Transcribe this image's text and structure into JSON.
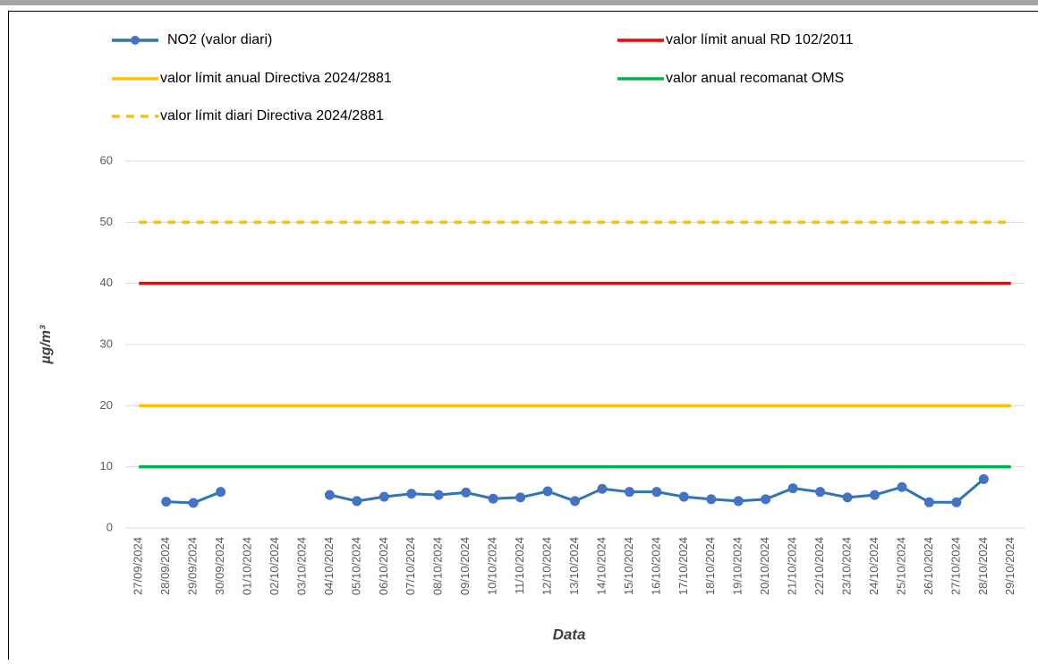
{
  "chart_data": {
    "type": "line",
    "y_label": "µg/m³",
    "x_label": "Data",
    "categories": [
      "27/09/2024",
      "28/09/2024",
      "29/09/2024",
      "30/09/2024",
      "01/10/2024",
      "02/10/2024",
      "03/10/2024",
      "04/10/2024",
      "05/10/2024",
      "06/10/2024",
      "07/10/2024",
      "08/10/2024",
      "09/10/2024",
      "10/10/2024",
      "11/10/2024",
      "12/10/2024",
      "13/10/2024",
      "14/10/2024",
      "15/10/2024",
      "16/10/2024",
      "17/10/2024",
      "18/10/2024",
      "19/10/2024",
      "20/10/2024",
      "21/10/2024",
      "22/10/2024",
      "23/10/2024",
      "24/10/2024",
      "25/10/2024",
      "26/10/2024",
      "27/10/2024",
      "28/10/2024",
      "29/10/2024"
    ],
    "series": [
      {
        "name": "NO2 (valor diari)",
        "color": "#2e75b6",
        "marker": true,
        "dash": false,
        "values": [
          null,
          4.3,
          4.1,
          5.9,
          null,
          null,
          null,
          5.4,
          4.4,
          5.1,
          5.6,
          5.4,
          5.8,
          4.8,
          5.0,
          6.0,
          4.4,
          6.4,
          5.9,
          5.9,
          5.1,
          4.7,
          4.4,
          4.7,
          6.5,
          5.9,
          5.0,
          5.4,
          6.7,
          4.2,
          4.2,
          8.0,
          null
        ]
      },
      {
        "name": "valor límit anual RD 102/2011",
        "color": "#ff0000",
        "marker": false,
        "dash": false,
        "values": [
          40,
          40,
          40,
          40,
          40,
          40,
          40,
          40,
          40,
          40,
          40,
          40,
          40,
          40,
          40,
          40,
          40,
          40,
          40,
          40,
          40,
          40,
          40,
          40,
          40,
          40,
          40,
          40,
          40,
          40,
          40,
          40,
          40
        ]
      },
      {
        "name": "valor límit anual Directiva 2024/2881",
        "color": "#ffc000",
        "marker": false,
        "dash": false,
        "values": [
          20,
          20,
          20,
          20,
          20,
          20,
          20,
          20,
          20,
          20,
          20,
          20,
          20,
          20,
          20,
          20,
          20,
          20,
          20,
          20,
          20,
          20,
          20,
          20,
          20,
          20,
          20,
          20,
          20,
          20,
          20,
          20,
          20
        ]
      },
      {
        "name": "valor anual recomanat OMS",
        "color": "#00b050",
        "marker": false,
        "dash": false,
        "values": [
          10,
          10,
          10,
          10,
          10,
          10,
          10,
          10,
          10,
          10,
          10,
          10,
          10,
          10,
          10,
          10,
          10,
          10,
          10,
          10,
          10,
          10,
          10,
          10,
          10,
          10,
          10,
          10,
          10,
          10,
          10,
          10,
          10
        ]
      },
      {
        "name": "valor límit diari Directiva 2024/2881",
        "color": "#ffc000",
        "marker": false,
        "dash": true,
        "values": [
          50,
          50,
          50,
          50,
          50,
          50,
          50,
          50,
          50,
          50,
          50,
          50,
          50,
          50,
          50,
          50,
          50,
          50,
          50,
          50,
          50,
          50,
          50,
          50,
          50,
          50,
          50,
          50,
          50,
          50,
          50,
          50,
          50
        ]
      }
    ],
    "ylim": [
      0,
      60
    ],
    "yticks": [
      0,
      10,
      20,
      30,
      40,
      50,
      60
    ],
    "grid": true
  }
}
